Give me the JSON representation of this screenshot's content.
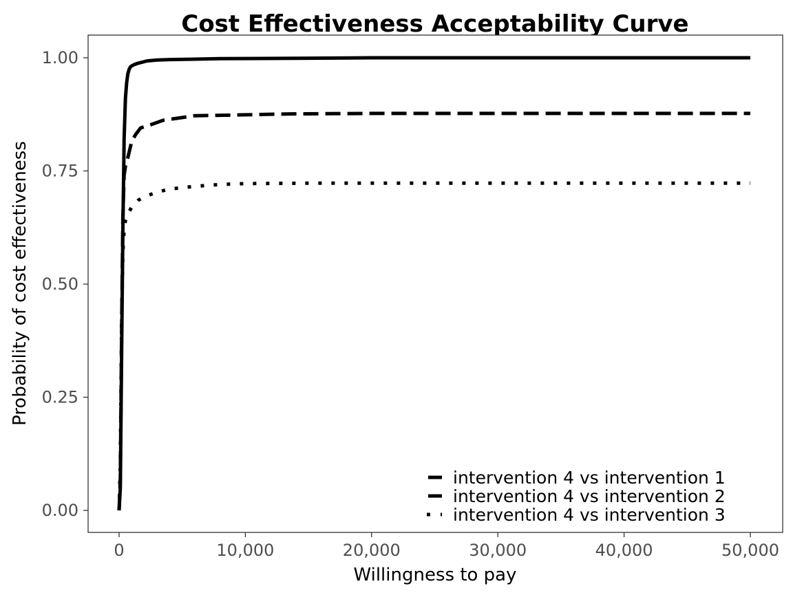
{
  "chart_data": {
    "type": "line",
    "title": "Cost Effectiveness Acceptability Curve",
    "xlabel": "Willingness to pay",
    "ylabel": "Probability of cost effectiveness",
    "xlim": [
      0,
      50000
    ],
    "ylim": [
      0,
      1
    ],
    "x_ticks": [
      0,
      10000,
      20000,
      30000,
      40000,
      50000
    ],
    "x_tick_labels": [
      "0",
      "10,000",
      "20,000",
      "30,000",
      "40,000",
      "50,000"
    ],
    "y_ticks": [
      0,
      0.25,
      0.5,
      0.75,
      1.0
    ],
    "y_tick_labels": [
      "0.00",
      "0.25",
      "0.50",
      "0.75",
      "1.00"
    ],
    "grid": false,
    "legend_position": "bottom-right",
    "series": [
      {
        "name": "intervention 4 vs intervention 1",
        "line_style": "solid",
        "color": "#000000",
        "x": [
          0,
          100,
          200,
          300,
          400,
          500,
          600,
          700,
          800,
          900,
          1000,
          1200,
          1500,
          1800,
          2200,
          3000,
          4000,
          6000,
          8000,
          14000,
          20000,
          30000,
          40000,
          50000
        ],
        "y": [
          0.0,
          0.05,
          0.35,
          0.62,
          0.82,
          0.91,
          0.945,
          0.965,
          0.975,
          0.98,
          0.982,
          0.985,
          0.988,
          0.99,
          0.993,
          0.995,
          0.996,
          0.997,
          0.998,
          0.999,
          1.0,
          1.0,
          1.0,
          1.0
        ]
      },
      {
        "name": "intervention 4 vs intervention 2",
        "line_style": "dashed",
        "color": "#000000",
        "x": [
          0,
          100,
          200,
          300,
          400,
          500,
          700,
          1000,
          1300,
          1700,
          2500,
          3500,
          5000,
          6000,
          8000,
          10000,
          13500,
          20000,
          30000,
          40000,
          50000
        ],
        "y": [
          0.0,
          0.07,
          0.4,
          0.65,
          0.74,
          0.76,
          0.78,
          0.815,
          0.83,
          0.845,
          0.852,
          0.862,
          0.868,
          0.872,
          0.873,
          0.874,
          0.876,
          0.877,
          0.877,
          0.877,
          0.877
        ]
      },
      {
        "name": "intervention 4 vs intervention 3",
        "line_style": "dotted",
        "color": "#000000",
        "x": [
          0,
          100,
          200,
          300,
          400,
          500,
          700,
          1000,
          1500,
          2000,
          3000,
          4000,
          6000,
          8000,
          10000,
          15000,
          20000,
          30000,
          40000,
          50000
        ],
        "y": [
          0.0,
          0.1,
          0.42,
          0.57,
          0.62,
          0.64,
          0.655,
          0.67,
          0.685,
          0.693,
          0.703,
          0.71,
          0.716,
          0.72,
          0.722,
          0.723,
          0.723,
          0.723,
          0.723,
          0.723
        ]
      }
    ]
  }
}
